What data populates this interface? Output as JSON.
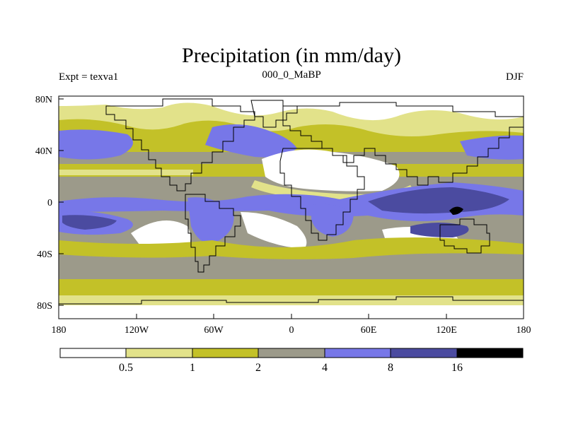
{
  "title": "Precipitation (in mm/day)",
  "left_label": "Expt = texva1",
  "center_label": "000_0_MaBP",
  "right_label": "DJF",
  "y_ticks": [
    "80N",
    "40N",
    "0",
    "40S",
    "80S"
  ],
  "x_ticks": [
    "180",
    "120W",
    "60W",
    "0",
    "60E",
    "120E",
    "180"
  ],
  "colorbar": {
    "colors": [
      "#ffffff",
      "#e2e28a",
      "#c3c128",
      "#9c9a8a",
      "#7777e8",
      "#4b4ba0",
      "#000000"
    ],
    "labels": [
      "0.5",
      "1",
      "2",
      "4",
      "8",
      "16"
    ]
  }
}
